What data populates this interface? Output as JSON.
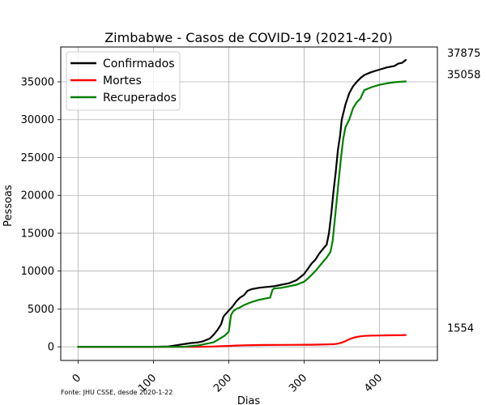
{
  "chart_data": {
    "type": "line",
    "title": "Zimbabwe - Casos de COVID-19 (2021-4-20)",
    "xlabel": "Dias",
    "ylabel": "Pessoas",
    "source_note": "Fonte: JHU CSSE, desde 2020-1-22",
    "xlim": [
      -23,
      477
    ],
    "ylim": [
      -1800,
      39600
    ],
    "xticks": [
      0,
      100,
      200,
      300,
      400
    ],
    "yticks": [
      0,
      5000,
      10000,
      15000,
      20000,
      25000,
      30000,
      35000
    ],
    "grid": true,
    "legend_position": "top-left",
    "x_tick_rotation": 45,
    "series": [
      {
        "name": "Confirmados",
        "color": "#000000",
        "end_label": "37875",
        "points": [
          [
            0,
            0
          ],
          [
            60,
            0
          ],
          [
            100,
            10
          ],
          [
            110,
            20
          ],
          [
            120,
            50
          ],
          [
            130,
            200
          ],
          [
            140,
            350
          ],
          [
            150,
            500
          ],
          [
            160,
            600
          ],
          [
            165,
            700
          ],
          [
            170,
            900
          ],
          [
            175,
            1100
          ],
          [
            180,
            1600
          ],
          [
            185,
            2200
          ],
          [
            190,
            3000
          ],
          [
            193,
            4000
          ],
          [
            200,
            4800
          ],
          [
            205,
            5300
          ],
          [
            210,
            6000
          ],
          [
            215,
            6500
          ],
          [
            220,
            6800
          ],
          [
            225,
            7400
          ],
          [
            230,
            7600
          ],
          [
            240,
            7800
          ],
          [
            250,
            7900
          ],
          [
            260,
            8000
          ],
          [
            270,
            8200
          ],
          [
            280,
            8400
          ],
          [
            290,
            8800
          ],
          [
            295,
            9200
          ],
          [
            300,
            9600
          ],
          [
            305,
            10300
          ],
          [
            310,
            11000
          ],
          [
            315,
            11500
          ],
          [
            320,
            12300
          ],
          [
            325,
            12900
          ],
          [
            330,
            13500
          ],
          [
            333,
            15000
          ],
          [
            336,
            17500
          ],
          [
            339,
            20500
          ],
          [
            342,
            23000
          ],
          [
            345,
            26000
          ],
          [
            348,
            28000
          ],
          [
            350,
            30000
          ],
          [
            355,
            32000
          ],
          [
            360,
            33500
          ],
          [
            365,
            34400
          ],
          [
            370,
            35000
          ],
          [
            375,
            35500
          ],
          [
            380,
            35900
          ],
          [
            385,
            36100
          ],
          [
            390,
            36300
          ],
          [
            400,
            36600
          ],
          [
            410,
            36900
          ],
          [
            420,
            37100
          ],
          [
            425,
            37400
          ],
          [
            430,
            37500
          ],
          [
            435,
            37875
          ]
        ]
      },
      {
        "name": "Mortes",
        "color": "#ff0000",
        "end_label": "1554",
        "points": [
          [
            0,
            0
          ],
          [
            150,
            0
          ],
          [
            160,
            10
          ],
          [
            170,
            20
          ],
          [
            180,
            40
          ],
          [
            190,
            80
          ],
          [
            200,
            120
          ],
          [
            210,
            170
          ],
          [
            220,
            200
          ],
          [
            230,
            220
          ],
          [
            250,
            240
          ],
          [
            270,
            250
          ],
          [
            290,
            260
          ],
          [
            300,
            270
          ],
          [
            310,
            280
          ],
          [
            320,
            300
          ],
          [
            330,
            320
          ],
          [
            340,
            350
          ],
          [
            345,
            420
          ],
          [
            350,
            550
          ],
          [
            355,
            750
          ],
          [
            360,
            1000
          ],
          [
            365,
            1180
          ],
          [
            370,
            1300
          ],
          [
            375,
            1390
          ],
          [
            380,
            1440
          ],
          [
            390,
            1480
          ],
          [
            400,
            1500
          ],
          [
            410,
            1520
          ],
          [
            420,
            1530
          ],
          [
            430,
            1540
          ],
          [
            435,
            1554
          ]
        ]
      },
      {
        "name": "Recuperados",
        "color": "#008000",
        "end_label": "35058",
        "points": [
          [
            0,
            0
          ],
          [
            140,
            0
          ],
          [
            150,
            100
          ],
          [
            160,
            200
          ],
          [
            170,
            400
          ],
          [
            180,
            600
          ],
          [
            185,
            900
          ],
          [
            190,
            1200
          ],
          [
            195,
            1500
          ],
          [
            200,
            2000
          ],
          [
            203,
            4200
          ],
          [
            206,
            4700
          ],
          [
            210,
            5000
          ],
          [
            215,
            5200
          ],
          [
            220,
            5500
          ],
          [
            225,
            5700
          ],
          [
            230,
            5900
          ],
          [
            240,
            6200
          ],
          [
            250,
            6400
          ],
          [
            255,
            6500
          ],
          [
            258,
            7500
          ],
          [
            260,
            7700
          ],
          [
            270,
            7800
          ],
          [
            280,
            8000
          ],
          [
            290,
            8200
          ],
          [
            300,
            8600
          ],
          [
            305,
            9000
          ],
          [
            310,
            9500
          ],
          [
            315,
            10000
          ],
          [
            320,
            10600
          ],
          [
            325,
            11200
          ],
          [
            330,
            11800
          ],
          [
            335,
            12500
          ],
          [
            338,
            14000
          ],
          [
            340,
            16000
          ],
          [
            343,
            19000
          ],
          [
            346,
            22000
          ],
          [
            349,
            25000
          ],
          [
            352,
            27500
          ],
          [
            355,
            29000
          ],
          [
            360,
            30000
          ],
          [
            365,
            31500
          ],
          [
            370,
            32300
          ],
          [
            375,
            32800
          ],
          [
            378,
            33500
          ],
          [
            380,
            33900
          ],
          [
            385,
            34100
          ],
          [
            390,
            34300
          ],
          [
            400,
            34600
          ],
          [
            410,
            34800
          ],
          [
            420,
            34950
          ],
          [
            435,
            35058
          ]
        ]
      }
    ]
  }
}
